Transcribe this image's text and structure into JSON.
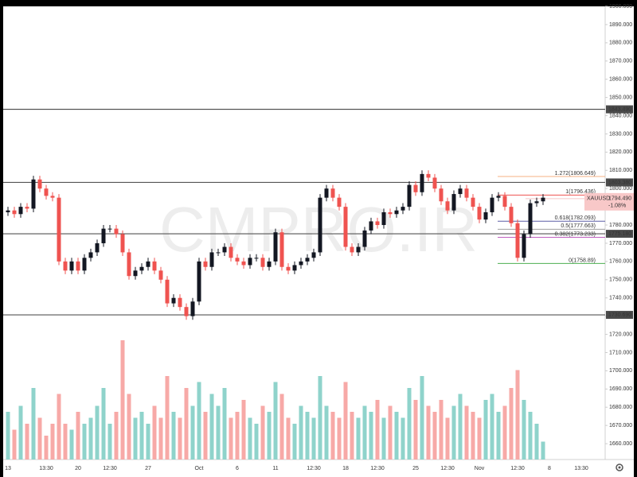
{
  "chart_data": {
    "type": "candlestick",
    "watermark": "CMPRO.IR",
    "categories": [
      "13",
      null,
      null,
      null,
      null,
      null,
      "13:30",
      null,
      null,
      null,
      null,
      "20",
      null,
      null,
      null,
      null,
      "12:30",
      null,
      null,
      null,
      null,
      null,
      "27",
      null,
      null,
      null,
      null,
      null,
      null,
      null,
      "Oct",
      null,
      null,
      null,
      null,
      null,
      "6",
      null,
      null,
      null,
      null,
      null,
      "11",
      null,
      null,
      null,
      null,
      null,
      "12:30",
      null,
      null,
      null,
      null,
      "18",
      null,
      null,
      null,
      null,
      "12:30",
      null,
      null,
      null,
      null,
      null,
      "25",
      null,
      null,
      null,
      null,
      "12:30",
      null,
      null,
      null,
      null,
      "Nov",
      null,
      null,
      null,
      null,
      null,
      "12:30",
      null,
      null,
      null,
      null,
      "8",
      null,
      null,
      null,
      null,
      "13:30"
    ],
    "open": [
      1787,
      1788,
      1786,
      1790,
      1789,
      1805,
      1800,
      1796,
      1795,
      1760,
      1755,
      1760,
      1755,
      1762,
      1765,
      1770,
      1778,
      1778,
      1775,
      1765,
      1752,
      1755,
      1757,
      1760,
      1755,
      1750,
      1737,
      1740,
      1735,
      1730,
      1738,
      1760,
      1757,
      1765,
      1765,
      1768,
      1762,
      1760,
      1758,
      1762,
      1762,
      1757,
      1760,
      1776,
      1757,
      1755,
      1758,
      1760,
      1762,
      1765,
      1795,
      1800,
      1795,
      1790,
      1768,
      1765,
      1768,
      1777,
      1782,
      1780,
      1787,
      1786,
      1788,
      1790,
      1802,
      1798,
      1808,
      1806,
      1800,
      1793,
      1788,
      1797,
      1800,
      1795,
      1790,
      1783,
      1787,
      1795,
      1796,
      1790,
      1781,
      1762,
      1775,
      1792,
      1793,
      null,
      null,
      null,
      null,
      null,
      null
    ],
    "high": [
      1790,
      1790,
      1792,
      1792,
      1807,
      1807,
      1802,
      1798,
      1797,
      1762,
      1762,
      1762,
      1764,
      1767,
      1772,
      1780,
      1780,
      1780,
      1777,
      1767,
      1757,
      1759,
      1762,
      1762,
      1757,
      1752,
      1742,
      1742,
      1737,
      1740,
      1762,
      1762,
      1767,
      1767,
      1770,
      1770,
      1764,
      1762,
      1764,
      1764,
      1764,
      1762,
      1778,
      1778,
      1759,
      1760,
      1762,
      1764,
      1767,
      1797,
      1802,
      1802,
      1797,
      1792,
      1770,
      1770,
      1779,
      1784,
      1784,
      1789,
      1789,
      1790,
      1792,
      1804,
      1804,
      1810,
      1810,
      1808,
      1802,
      1795,
      1799,
      1802,
      1802,
      1797,
      1792,
      1789,
      1797,
      1798,
      1798,
      1792,
      1783,
      1777,
      1794,
      1795,
      1797,
      null,
      null,
      null,
      null,
      null,
      null
    ],
    "low": [
      1785,
      1784,
      1784,
      1787,
      1787,
      1798,
      1794,
      1793,
      1758,
      1753,
      1753,
      1753,
      1753,
      1760,
      1763,
      1768,
      1776,
      1773,
      1763,
      1750,
      1750,
      1753,
      1755,
      1753,
      1748,
      1735,
      1735,
      1733,
      1728,
      1728,
      1736,
      1755,
      1755,
      1763,
      1763,
      1760,
      1758,
      1756,
      1756,
      1760,
      1755,
      1755,
      1758,
      1755,
      1753,
      1753,
      1756,
      1758,
      1760,
      1763,
      1793,
      1793,
      1788,
      1766,
      1763,
      1763,
      1766,
      1775,
      1778,
      1778,
      1784,
      1784,
      1786,
      1788,
      1796,
      1796,
      1804,
      1798,
      1791,
      1786,
      1786,
      1795,
      1793,
      1788,
      1781,
      1781,
      1785,
      1793,
      1788,
      1779,
      1760,
      1760,
      1773,
      1790,
      1791,
      null,
      null,
      null,
      null,
      null,
      null
    ],
    "close": [
      1788,
      1786,
      1790,
      1789,
      1805,
      1800,
      1796,
      1795,
      1760,
      1755,
      1760,
      1755,
      1762,
      1765,
      1770,
      1778,
      1778,
      1775,
      1765,
      1752,
      1755,
      1757,
      1760,
      1755,
      1750,
      1737,
      1740,
      1735,
      1730,
      1738,
      1760,
      1757,
      1765,
      1765,
      1768,
      1762,
      1760,
      1758,
      1762,
      1762,
      1757,
      1760,
      1776,
      1757,
      1755,
      1758,
      1760,
      1762,
      1765,
      1795,
      1800,
      1795,
      1790,
      1768,
      1765,
      1768,
      1777,
      1782,
      1780,
      1787,
      1786,
      1788,
      1790,
      1802,
      1798,
      1808,
      1806,
      1800,
      1793,
      1788,
      1797,
      1800,
      1795,
      1790,
      1783,
      1787,
      1795,
      1796,
      1790,
      1781,
      1762,
      1775,
      1792,
      1793,
      1795,
      null,
      null,
      null,
      null,
      null,
      null
    ],
    "volume": [
      40,
      25,
      45,
      30,
      60,
      35,
      20,
      30,
      55,
      30,
      25,
      40,
      30,
      35,
      45,
      60,
      30,
      40,
      100,
      55,
      35,
      40,
      30,
      45,
      35,
      70,
      40,
      35,
      60,
      45,
      65,
      40,
      55,
      45,
      60,
      35,
      40,
      50,
      35,
      30,
      45,
      40,
      65,
      55,
      35,
      30,
      45,
      40,
      35,
      70,
      45,
      40,
      35,
      65,
      40,
      35,
      45,
      40,
      50,
      35,
      45,
      40,
      35,
      60,
      50,
      70,
      45,
      40,
      50,
      35,
      45,
      55,
      45,
      40,
      35,
      50,
      55,
      40,
      45,
      60,
      75,
      50,
      40,
      30,
      15,
      null,
      null,
      null,
      null,
      null,
      null
    ],
    "up_color": "#131722",
    "down_color": "#ef5350",
    "volume_up_color": "#8fd3cb",
    "volume_down_color": "#f7a9a7",
    "ylim": [
      1650,
      1900
    ],
    "yticks": [
      {
        "value": 1660,
        "label": "1660.000"
      },
      {
        "value": 1670,
        "label": "1670.000"
      },
      {
        "value": 1680,
        "label": "1680.000"
      },
      {
        "value": 1690,
        "label": "1690.000"
      },
      {
        "value": 1700,
        "label": "1700.000"
      },
      {
        "value": 1710,
        "label": "1710.000"
      },
      {
        "value": 1720,
        "label": "1720.000"
      },
      {
        "value": 1730,
        "label": "1730.000"
      },
      {
        "value": 1740,
        "label": "1740.000"
      },
      {
        "value": 1750,
        "label": "1750.000"
      },
      {
        "value": 1760,
        "label": "1760.000"
      },
      {
        "value": 1770,
        "label": "1770.000"
      },
      {
        "value": 1780,
        "label": "1780.000"
      },
      {
        "value": 1790,
        "label": "1790.000"
      },
      {
        "value": 1800,
        "label": "1800.000"
      },
      {
        "value": 1810,
        "label": "1810.000"
      },
      {
        "value": 1820,
        "label": "1820.000"
      },
      {
        "value": 1830,
        "label": "1830.000"
      },
      {
        "value": 1840,
        "label": "1840.000"
      },
      {
        "value": 1850,
        "label": "1850.000"
      },
      {
        "value": 1860,
        "label": "1860.000"
      },
      {
        "value": 1870,
        "label": "1870.000"
      },
      {
        "value": 1880,
        "label": "1880.000"
      },
      {
        "value": 1890,
        "label": "1890.000"
      },
      {
        "value": 1900,
        "label": "1900.000"
      }
    ],
    "hlines": [
      {
        "value": 1843.49,
        "label": "1843.490"
      },
      {
        "value": 1803.38,
        "label": "1803.380"
      },
      {
        "value": 1775.18,
        "label": "1775.180"
      },
      {
        "value": 1730.69,
        "label": "1730.690"
      }
    ],
    "fib_levels": [
      {
        "value": 1806.649,
        "label": "1.272(1806.649)",
        "color": "#f4b183"
      },
      {
        "value": 1796.436,
        "label": "1(1796.436)",
        "color": "#ef5350"
      },
      {
        "value": 1782.093,
        "label": "0.618(1782.093)",
        "color": "#5b5ea6"
      },
      {
        "value": 1777.663,
        "label": "0.5(1777.663)",
        "color": "#9e9e9e"
      },
      {
        "value": 1773.233,
        "label": "0.382(1773.233)",
        "color": "#c05fc0"
      },
      {
        "value": 1758.89,
        "label": "0(1758.89)",
        "color": "#4caf50"
      }
    ],
    "last": {
      "symbol": "XAUUSD",
      "price": {
        "value": 1794.49,
        "label": "1794.490"
      },
      "change": "-1.08%",
      "color": "#f8c8c8"
    }
  }
}
